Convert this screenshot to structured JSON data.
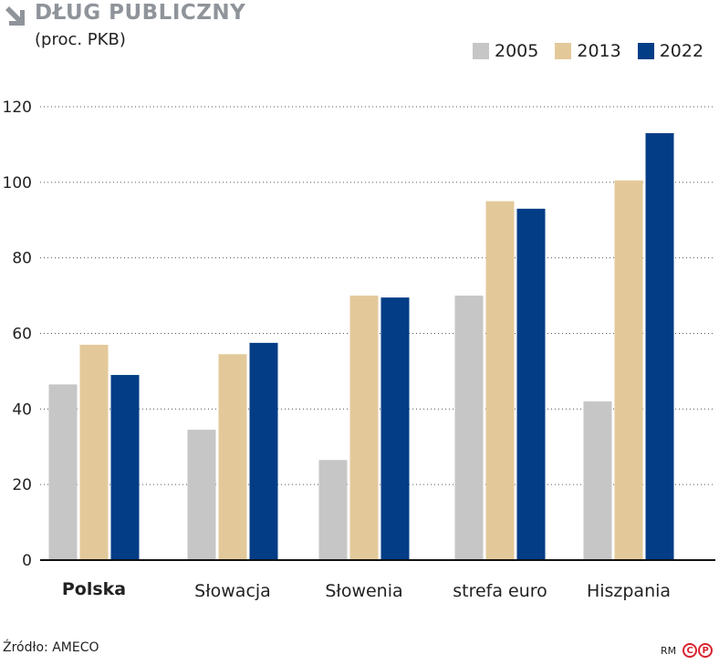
{
  "header": {
    "title": "DŁUG PUBLICZNY",
    "subtitle": "(proc. PKB)"
  },
  "legend": [
    {
      "label": "2005",
      "color": "#c6c6c6"
    },
    {
      "label": "2013",
      "color": "#e3c99a"
    },
    {
      "label": "2022",
      "color": "#033d86"
    }
  ],
  "chart_data": {
    "type": "bar",
    "title": "DŁUG PUBLICZNY",
    "subtitle": "(proc. PKB)",
    "xlabel": "",
    "ylabel": "",
    "ylim": [
      0,
      120
    ],
    "yticks": [
      0,
      20,
      40,
      60,
      80,
      100,
      120
    ],
    "grid": true,
    "legend_position": "top-right",
    "categories": [
      "Polska",
      "Słowacja",
      "Słowenia",
      "strefa euro",
      "Hiszpania"
    ],
    "highlighted_category": "Polska",
    "series": [
      {
        "name": "2005",
        "color": "#c6c6c6",
        "values": [
          46.5,
          34.5,
          26.5,
          70,
          42
        ]
      },
      {
        "name": "2013",
        "color": "#e3c99a",
        "values": [
          57,
          54.5,
          70,
          95,
          100.5
        ]
      },
      {
        "name": "2022",
        "color": "#033d86",
        "values": [
          49,
          57.5,
          69.5,
          93,
          113
        ]
      }
    ]
  },
  "footer": {
    "source": "Źródło: AMECO",
    "credit_initials": "RM",
    "logo_c": "C",
    "logo_p": "P"
  }
}
